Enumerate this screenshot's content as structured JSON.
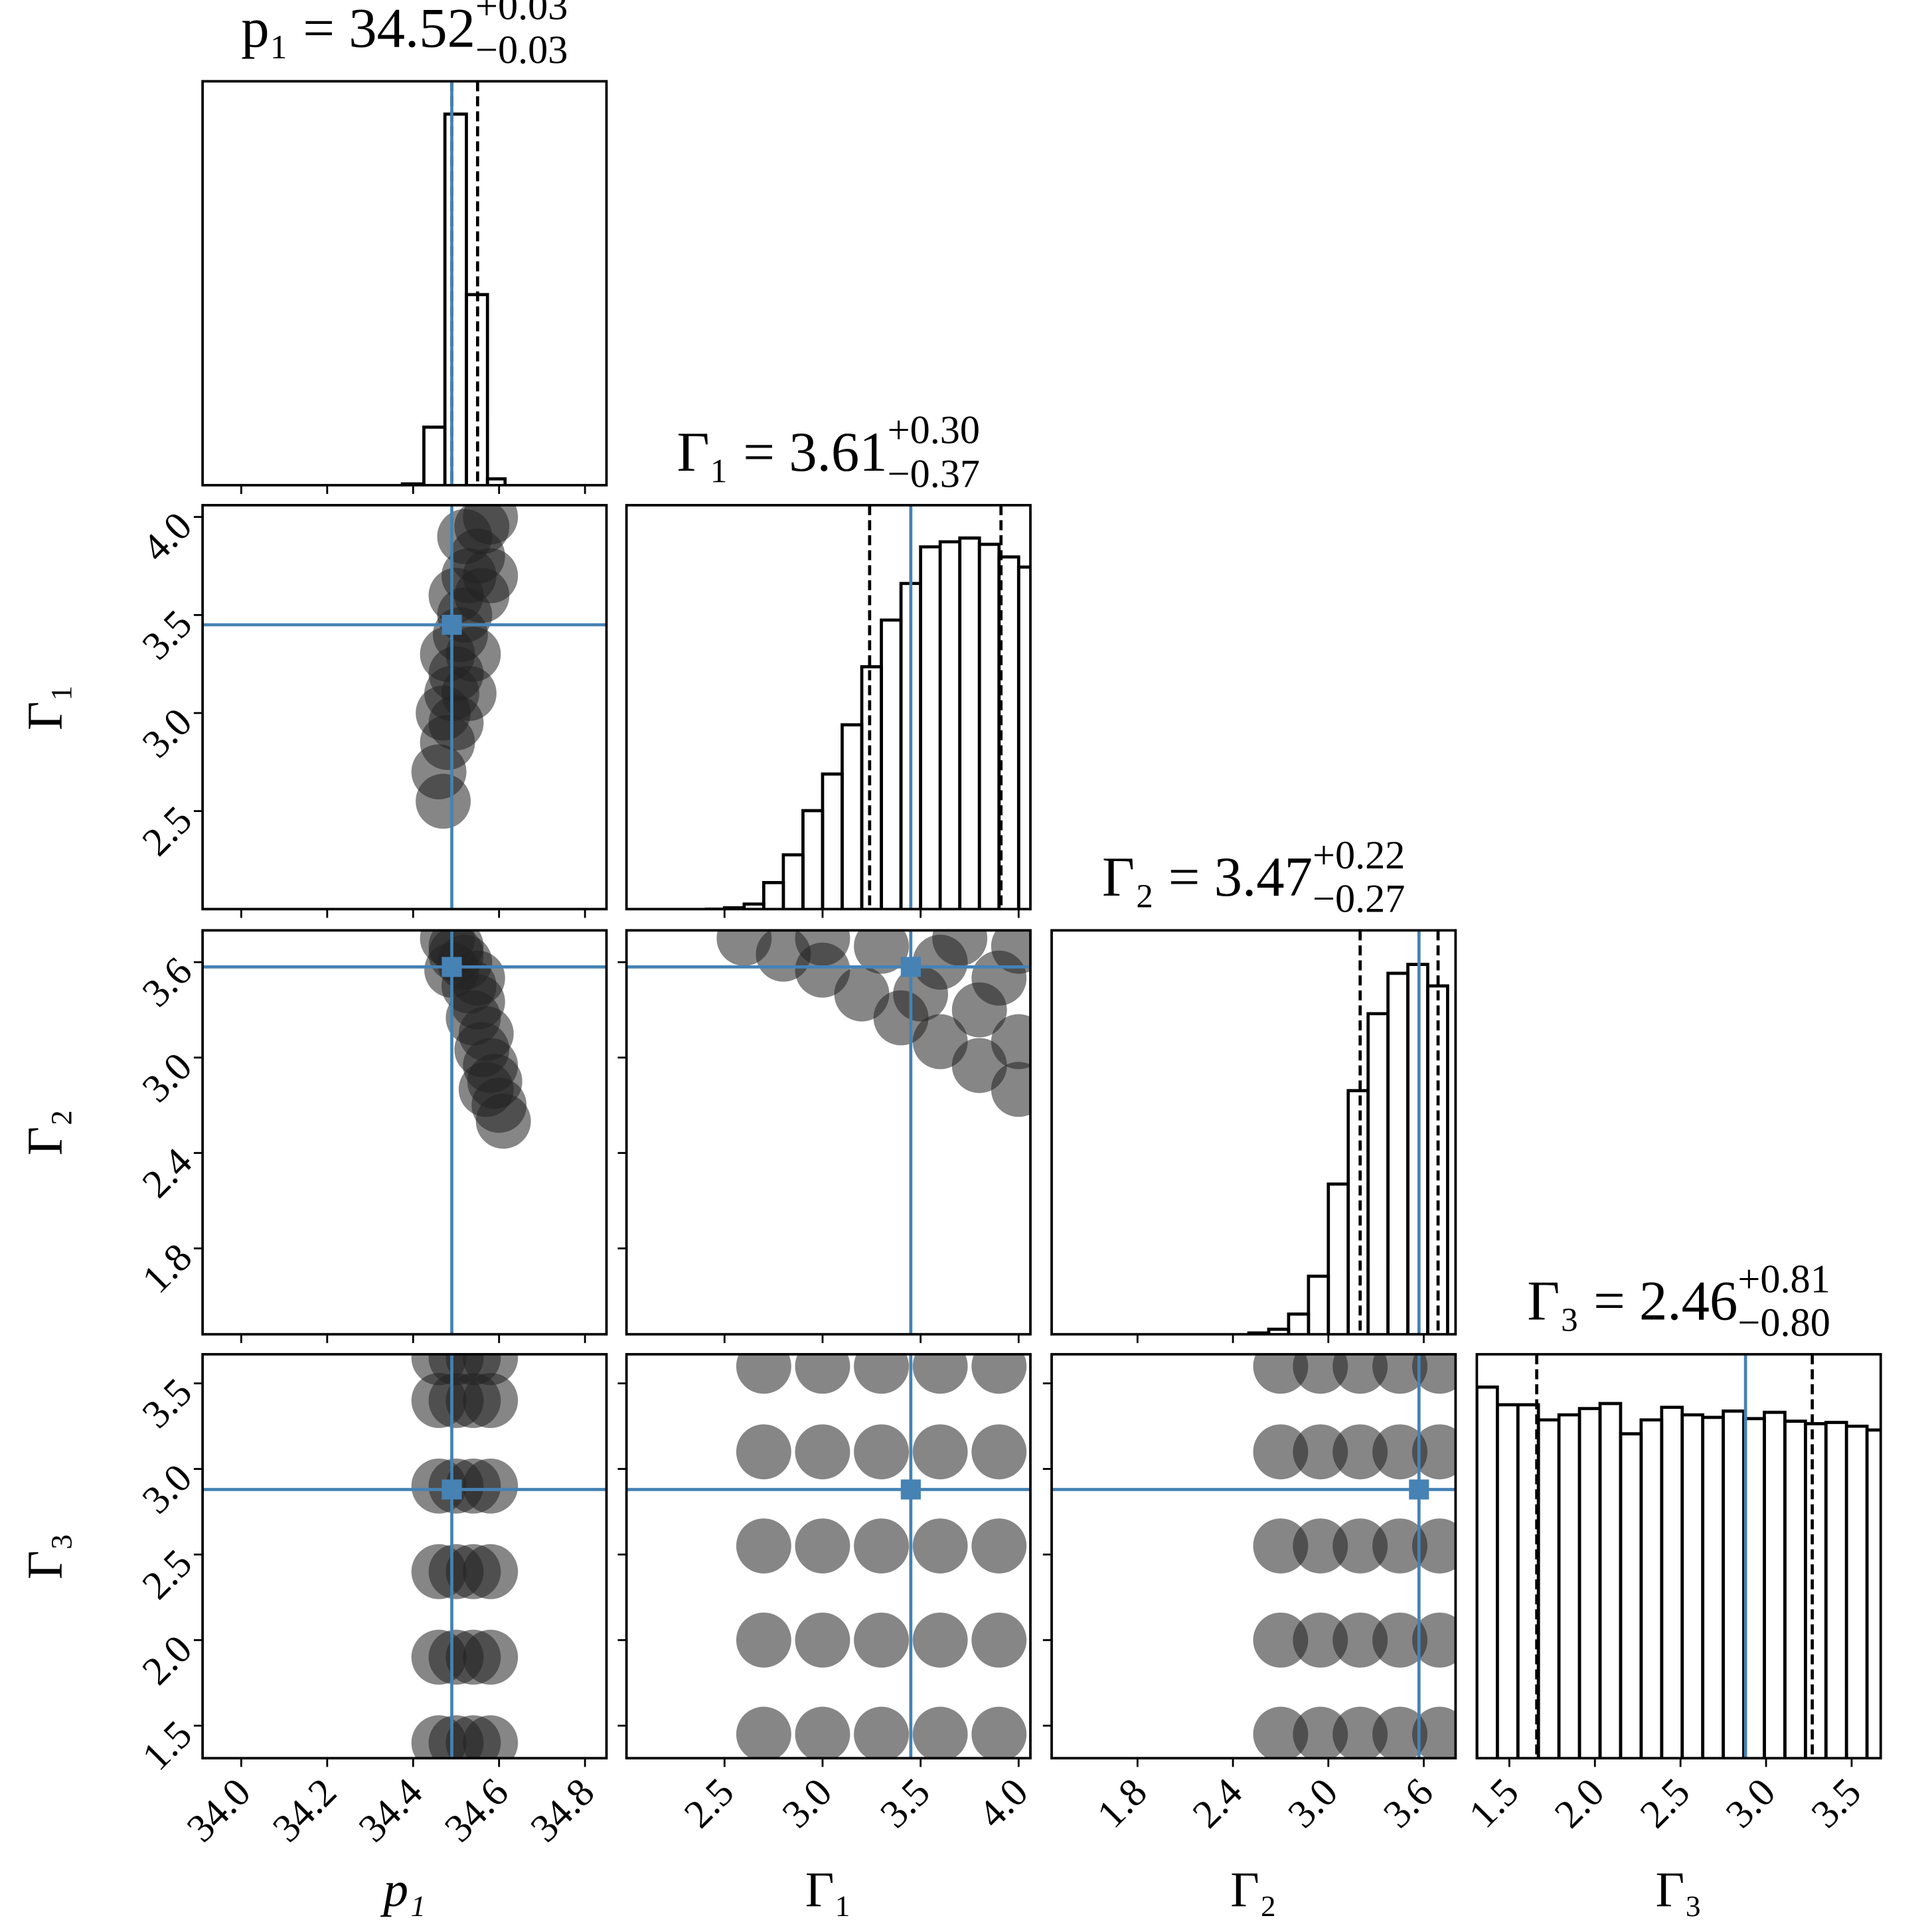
{
  "chart_data": {
    "type": "corner",
    "parameters": [
      {
        "label": "p₁",
        "title": "p₁ = 34.52",
        "upper": "+0.03",
        "lower": "−0.03",
        "xlim": [
          33.91,
          34.85
        ],
        "ticks": [
          {
            "value": 34,
            "label": "34.0"
          },
          34.2,
          34.4,
          34.6,
          {
            "value": 34.8,
            "label": "34.8"
          }
        ],
        "truth": 34.49,
        "quantiles": [
          34.49,
          34.55
        ],
        "hist": {
          "type": "histogram",
          "bins": [
            34.375,
            34.425,
            34.474,
            34.524,
            34.573,
            34.614
          ],
          "counts": [
            1,
            46,
            294,
            151,
            5
          ],
          "ylim": [
            0,
            320
          ]
        }
      },
      {
        "label": "Γ₁",
        "title": "Γ₁ = 3.61",
        "upper": "+0.30",
        "lower": "−0.37",
        "xlim": [
          2.0,
          4.06
        ],
        "ticks": [
          2.5,
          {
            "value": 3,
            "label": "3.0"
          },
          3.5,
          {
            "value": 4,
            "label": "4.0"
          }
        ],
        "truth": 3.45,
        "quantiles": [
          3.24,
          3.91
        ],
        "hist": {
          "type": "histogram",
          "bins": [
            2.4,
            2.5,
            2.6,
            2.7,
            2.8,
            2.9,
            3.0,
            3.1,
            3.2,
            3.3,
            3.4,
            3.5,
            3.6,
            3.7,
            3.8,
            3.9,
            4.0,
            4.1
          ],
          "counts": [
            0,
            1,
            4,
            21,
            43,
            78,
            107,
            146,
            192,
            229,
            258,
            287,
            291,
            294,
            289,
            279,
            271
          ],
          "ylim": [
            0,
            320
          ]
        }
      },
      {
        "label": "Γ₂",
        "title": "Γ₂ = 3.47",
        "upper": "+0.22",
        "lower": "−0.27",
        "xlim": [
          1.26,
          3.8
        ],
        "ticks": [
          1.8,
          2.4,
          {
            "value": 3,
            "label": "3.0"
          },
          3.6
        ],
        "truth": 3.57,
        "quantiles": [
          3.2,
          3.69
        ],
        "hist": {
          "type": "histogram",
          "bins": [
            2.5,
            2.625,
            2.75,
            2.875,
            3.0,
            3.125,
            3.25,
            3.375,
            3.5,
            3.625,
            3.75
          ],
          "counts": [
            1,
            4,
            16,
            46,
            119,
            193,
            254,
            286,
            293,
            276
          ],
          "ylim": [
            0,
            320
          ]
        }
      },
      {
        "label": "Γ₃",
        "title": "Γ₃ = 2.46",
        "upper": "+0.81",
        "lower": "−0.80",
        "xlim": [
          1.31,
          3.67
        ],
        "ticks": [
          1.5,
          {
            "value": 2,
            "label": "2.0"
          },
          2.5,
          {
            "value": 3,
            "label": "3.0"
          },
          3.5
        ],
        "truth": 2.88,
        "quantiles": [
          1.66,
          3.27
        ],
        "hist": {
          "type": "histogram",
          "bins": [
            1.31,
            1.43,
            1.55,
            1.67,
            1.79,
            1.91,
            2.03,
            2.15,
            2.27,
            2.39,
            2.51,
            2.63,
            2.75,
            2.87,
            2.99,
            3.11,
            3.23,
            3.35,
            3.47,
            3.59,
            3.71
          ],
          "counts": [
            294,
            280,
            280,
            268,
            272,
            277,
            281,
            257,
            268,
            278,
            272,
            270,
            275,
            269,
            274,
            267,
            265,
            266,
            263,
            260
          ],
          "ylim": [
            0,
            320
          ]
        }
      }
    ],
    "pairs": [
      {
        "type": "scatter",
        "x": [
          34.47,
          34.46,
          34.48,
          34.47,
          34.49,
          34.5,
          34.48,
          34.51,
          34.52,
          34.5,
          34.53,
          34.55,
          34.52,
          34.56,
          34.58,
          34.54,
          34.56,
          34.5,
          34.58,
          34.53
        ],
        "y": [
          2.55,
          2.7,
          2.85,
          3.0,
          3.1,
          3.2,
          3.3,
          3.4,
          3.5,
          3.6,
          3.7,
          3.8,
          3.9,
          3.95,
          4.0,
          3.3,
          3.6,
          2.95,
          3.7,
          3.1
        ]
      },
      {
        "type": "scatter",
        "x": [
          34.48,
          34.5,
          34.52,
          34.49,
          34.53,
          34.55,
          34.54,
          34.57,
          34.56,
          34.58,
          34.59,
          34.57,
          34.6,
          34.61,
          34.5,
          34.55
        ],
        "y": [
          3.75,
          3.7,
          3.6,
          3.55,
          3.45,
          3.35,
          3.25,
          3.15,
          3.05,
          2.95,
          2.85,
          2.8,
          2.7,
          2.6,
          3.65,
          3.5
        ]
      },
      {
        "type": "scatter",
        "x": [
          2.6,
          2.8,
          3.0,
          3.2,
          3.4,
          3.6,
          3.8,
          4.0,
          3.0,
          3.3,
          3.6,
          3.9,
          3.5,
          3.8,
          4.0,
          3.7,
          4.0
        ],
        "y": [
          3.75,
          3.65,
          3.55,
          3.4,
          3.25,
          3.1,
          2.95,
          2.8,
          3.75,
          3.7,
          3.6,
          3.5,
          3.4,
          3.3,
          3.1,
          3.75,
          3.7
        ]
      },
      {
        "type": "scatter",
        "x": [
          34.46,
          34.5,
          34.54,
          34.58,
          34.46,
          34.5,
          34.54,
          34.58,
          34.46,
          34.5,
          34.54,
          34.58,
          34.46,
          34.5,
          34.54,
          34.58,
          34.46,
          34.5,
          34.54,
          34.58,
          34.46,
          34.5,
          34.54,
          34.58
        ],
        "y": [
          1.4,
          1.4,
          1.4,
          1.4,
          1.9,
          1.9,
          1.9,
          1.9,
          2.4,
          2.4,
          2.4,
          2.4,
          2.9,
          2.9,
          2.9,
          2.9,
          3.4,
          3.4,
          3.4,
          3.4,
          3.65,
          3.65,
          3.65,
          3.65
        ]
      },
      {
        "type": "scatter",
        "x": [
          2.7,
          3.0,
          3.3,
          3.6,
          3.9,
          2.7,
          3.0,
          3.3,
          3.6,
          3.9,
          2.7,
          3.0,
          3.3,
          3.6,
          3.9,
          2.7,
          3.0,
          3.3,
          3.6,
          3.9,
          2.7,
          3.0,
          3.3,
          3.6,
          3.9
        ],
        "y": [
          1.45,
          1.45,
          1.45,
          1.45,
          1.45,
          2.0,
          2.0,
          2.0,
          2.0,
          2.0,
          2.55,
          2.55,
          2.55,
          2.55,
          2.55,
          3.1,
          3.1,
          3.1,
          3.1,
          3.1,
          3.6,
          3.6,
          3.6,
          3.6,
          3.6
        ]
      },
      {
        "type": "scatter",
        "x": [
          2.7,
          2.95,
          3.2,
          3.45,
          3.7,
          2.7,
          2.95,
          3.2,
          3.45,
          3.7,
          2.7,
          2.95,
          3.2,
          3.45,
          3.7,
          2.7,
          2.95,
          3.2,
          3.45,
          3.7,
          2.7,
          2.95,
          3.2,
          3.45,
          3.7
        ],
        "y": [
          1.45,
          1.45,
          1.45,
          1.45,
          1.45,
          2.0,
          2.0,
          2.0,
          2.0,
          2.0,
          2.55,
          2.55,
          2.55,
          2.55,
          2.55,
          3.1,
          3.1,
          3.1,
          3.1,
          3.1,
          3.6,
          3.6,
          3.6,
          3.6,
          3.6
        ]
      }
    ],
    "truth_color": "#4682b4"
  }
}
